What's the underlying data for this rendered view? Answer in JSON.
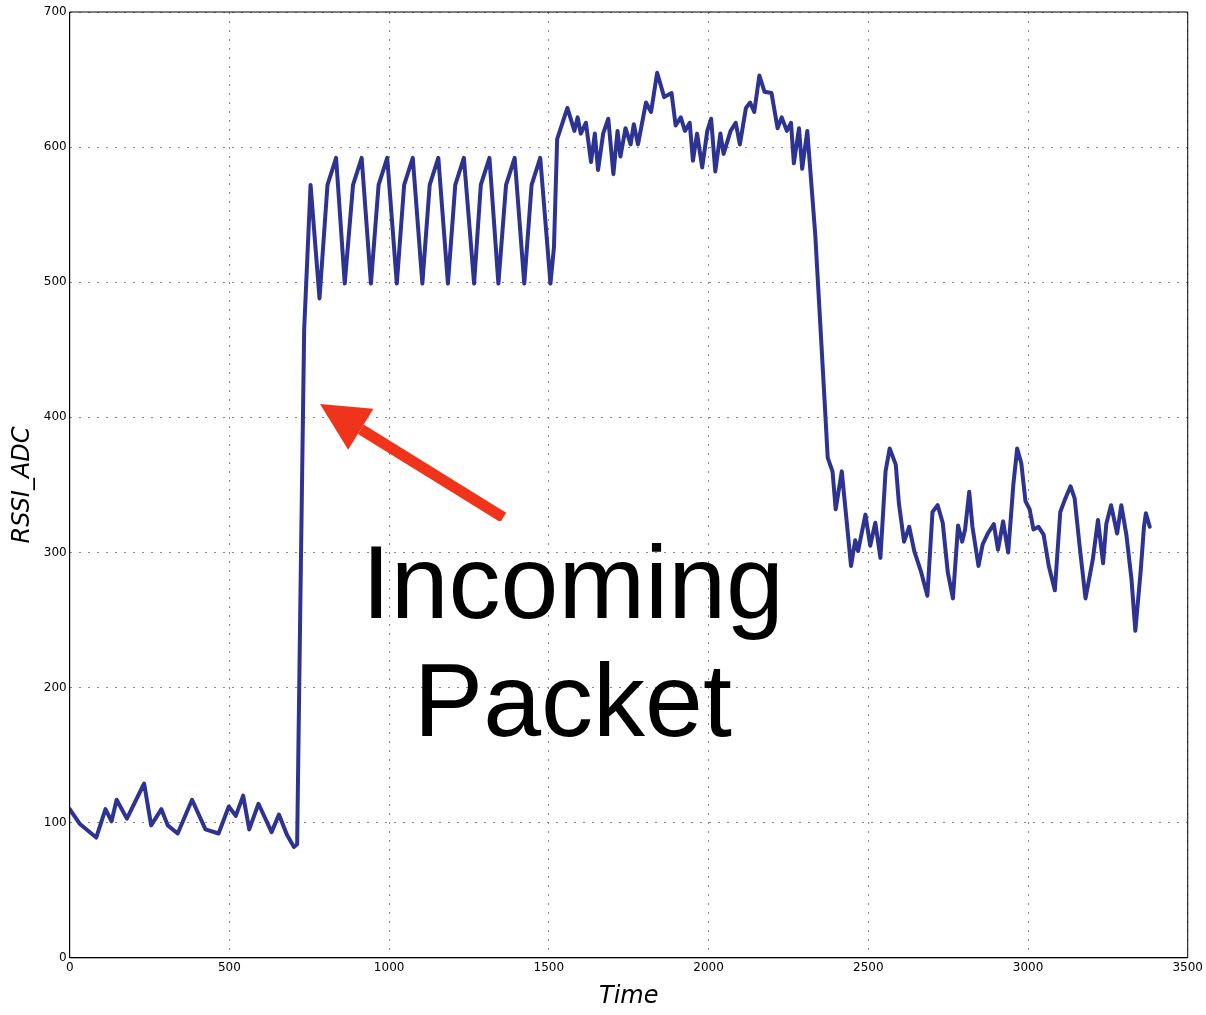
{
  "chart_data": {
    "type": "line",
    "xlabel": "Time",
    "ylabel": "RSSI_ADC",
    "x": [
      0,
      32,
      83,
      112,
      131,
      147,
      179,
      233,
      255,
      287,
      307,
      338,
      383,
      425,
      466,
      498,
      520,
      543,
      562,
      591,
      632,
      655,
      680,
      702,
      712,
      722,
      734,
      754,
      782,
      807,
      834,
      861,
      887,
      914,
      943,
      967,
      994,
      1024,
      1047,
      1074,
      1104,
      1127,
      1154,
      1184,
      1207,
      1234,
      1266,
      1287,
      1314,
      1342,
      1366,
      1393,
      1423,
      1446,
      1473,
      1505,
      1516,
      1526,
      1558,
      1580,
      1590,
      1600,
      1616,
      1632,
      1644,
      1654,
      1670,
      1686,
      1702,
      1715,
      1724,
      1740,
      1756,
      1766,
      1779,
      1804,
      1820,
      1839,
      1861,
      1884,
      1897,
      1913,
      1926,
      1941,
      1951,
      1964,
      1980,
      1996,
      2008,
      2021,
      2037,
      2047,
      2069,
      2085,
      2098,
      2117,
      2130,
      2143,
      2159,
      2175,
      2197,
      2216,
      2229,
      2245,
      2258,
      2267,
      2283,
      2293,
      2309,
      2334,
      2363,
      2373,
      2388,
      2398,
      2417,
      2446,
      2459,
      2468,
      2491,
      2506,
      2522,
      2538,
      2554,
      2567,
      2586,
      2596,
      2612,
      2628,
      2644,
      2666,
      2685,
      2701,
      2717,
      2733,
      2749,
      2765,
      2781,
      2794,
      2803,
      2816,
      2826,
      2845,
      2858,
      2874,
      2893,
      2906,
      2922,
      2938,
      2954,
      2966,
      2979,
      2992,
      3005,
      3017,
      3033,
      3049,
      3065,
      3084,
      3101,
      3117,
      3133,
      3146,
      3161,
      3180,
      3203,
      3219,
      3235,
      3245,
      3260,
      3279,
      3292,
      3308,
      3324,
      3336,
      3353,
      3363,
      3369,
      3381
    ],
    "values": [
      110,
      99,
      89,
      110,
      101,
      117,
      103,
      129,
      98,
      110,
      98,
      92,
      117,
      95,
      92,
      112,
      105,
      120,
      95,
      114,
      93,
      106,
      91,
      82,
      84,
      262,
      465,
      572,
      488,
      572,
      592,
      499,
      572,
      592,
      499,
      572,
      592,
      499,
      572,
      592,
      499,
      572,
      592,
      499,
      572,
      592,
      499,
      572,
      592,
      499,
      572,
      592,
      499,
      572,
      592,
      499,
      526,
      606,
      629,
      612,
      622,
      610,
      618,
      589,
      610,
      583,
      610,
      621,
      580,
      612,
      593,
      614,
      602,
      617,
      602,
      633,
      626,
      655,
      637,
      640,
      616,
      622,
      612,
      618,
      590,
      610,
      585,
      612,
      621,
      582,
      610,
      595,
      612,
      618,
      602,
      629,
      633,
      626,
      653,
      641,
      640,
      614,
      622,
      612,
      618,
      588,
      614,
      584,
      612,
      535,
      413,
      370,
      360,
      332,
      360,
      290,
      309,
      301,
      328,
      305,
      322,
      296,
      360,
      377,
      365,
      336,
      308,
      319,
      301,
      285,
      268,
      330,
      335,
      322,
      285,
      266,
      320,
      308,
      317,
      345,
      319,
      290,
      306,
      314,
      321,
      302,
      323,
      300,
      350,
      377,
      366,
      338,
      332,
      317,
      319,
      313,
      290,
      272,
      330,
      340,
      349,
      340,
      306,
      266,
      295,
      324,
      292,
      321,
      335,
      314,
      335,
      313,
      280,
      242,
      287,
      319,
      329,
      319
    ],
    "color": "#2d3393",
    "xlim": [
      0,
      3500
    ],
    "xticks": [
      0,
      500,
      1000,
      1500,
      2000,
      2500,
      3000,
      3500
    ],
    "ylim": [
      0,
      700
    ],
    "yticks": [
      0,
      100,
      200,
      300,
      400,
      500,
      600,
      700
    ],
    "grid": true,
    "legend": false,
    "marker": "none",
    "line_style": "solid",
    "annotations": [
      "Incoming Packet"
    ]
  }
}
